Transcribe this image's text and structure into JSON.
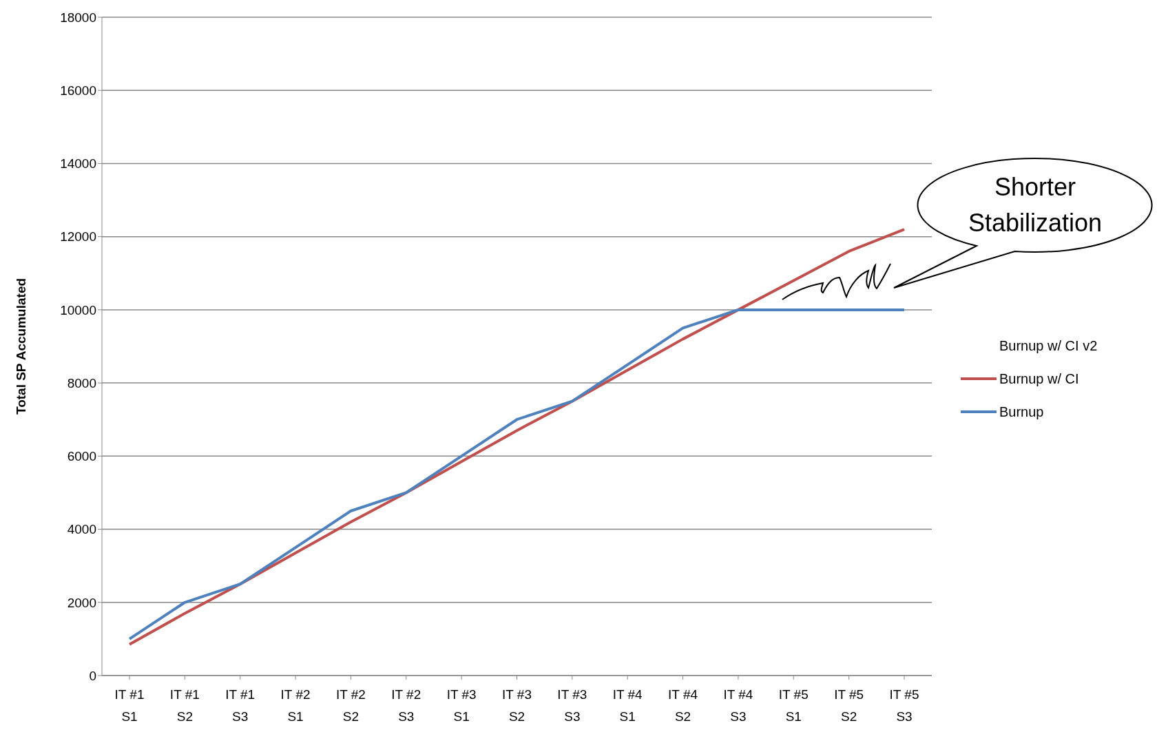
{
  "chart_data": {
    "type": "line",
    "ylabel": "Total SP Accumulated",
    "categories": [
      "IT #1 S1",
      "IT #1 S2",
      "IT #1 S3",
      "IT #2 S1",
      "IT #2 S2",
      "IT #2 S3",
      "IT #3 S1",
      "IT #3 S2",
      "IT #3 S3",
      "IT #4 S1",
      "IT #4 S2",
      "IT #4 S3",
      "IT #5 S1",
      "IT #5 S2",
      "IT #5 S3"
    ],
    "series": [
      {
        "name": "Burnup w/ CI v2",
        "values": [
          null,
          null,
          null,
          null,
          null,
          null,
          null,
          null,
          null,
          null,
          null,
          null,
          null,
          null,
          null
        ]
      },
      {
        "name": "Burnup w/ CI",
        "color": "#c0504d",
        "values": [
          850,
          1700,
          2500,
          3350,
          4200,
          5000,
          5850,
          6700,
          7500,
          8350,
          9200,
          10000,
          10800,
          11600,
          12200
        ]
      },
      {
        "name": "Burnup",
        "color": "#4f81bd",
        "values": [
          1000,
          2000,
          2500,
          3500,
          4500,
          5000,
          6000,
          7000,
          7500,
          8500,
          9500,
          10000,
          10000,
          10000,
          10000
        ]
      }
    ],
    "ylim": [
      0,
      18000
    ],
    "yticks": [
      0,
      2000,
      4000,
      6000,
      8000,
      10000,
      12000,
      14000,
      16000,
      18000
    ],
    "grid": "y",
    "legend": "right",
    "marker": "none",
    "line_style": "solid",
    "annotations": [
      "Shorter Stabilization"
    ]
  }
}
